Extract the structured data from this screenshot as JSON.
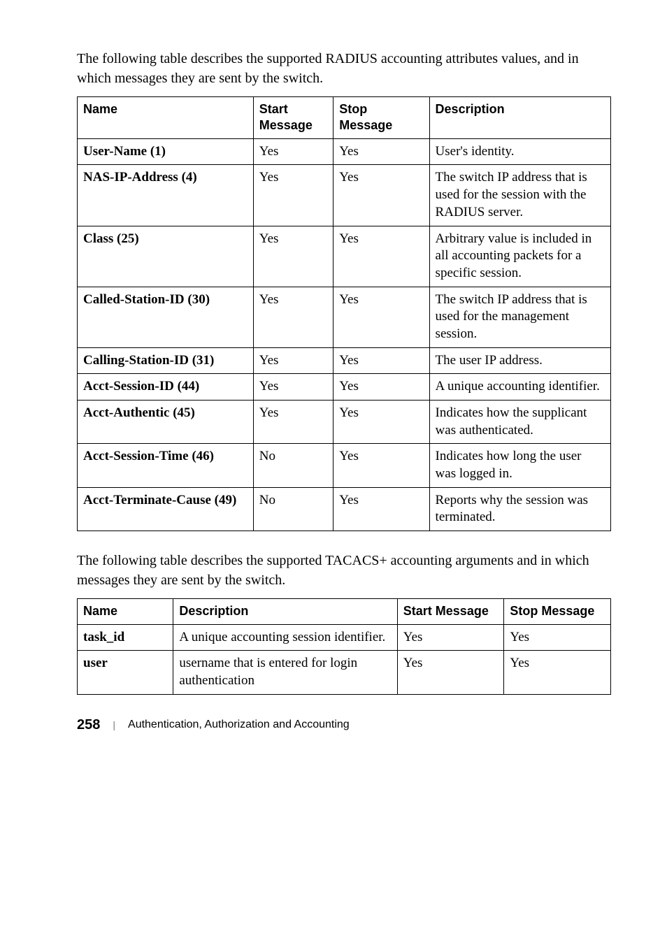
{
  "intro1": "The following table describes the supported RADIUS accounting attributes values, and in which messages they are sent by the switch.",
  "table1": {
    "headers": {
      "c1": "Name",
      "c2": "Start Message",
      "c3": "Stop Message",
      "c4": "Description"
    },
    "rows": [
      {
        "name": "User-Name (1)",
        "start": "Yes",
        "stop": "Yes",
        "desc": "User's identity."
      },
      {
        "name": "NAS-IP-Address (4)",
        "start": "Yes",
        "stop": "Yes",
        "desc": "The switch IP address that is used for the session with the RADIUS server."
      },
      {
        "name": "Class (25)",
        "start": "Yes",
        "stop": "Yes",
        "desc": "Arbitrary value is included in all accounting packets for a specific session."
      },
      {
        "name": "Called-Station-ID (30)",
        "start": "Yes",
        "stop": "Yes",
        "desc": "The switch IP address that is used for the management session."
      },
      {
        "name": "Calling-Station-ID (31)",
        "start": "Yes",
        "stop": "Yes",
        "desc": "The user IP address."
      },
      {
        "name": "Acct-Session-ID (44)",
        "start": "Yes",
        "stop": "Yes",
        "desc": "A unique accounting identifier."
      },
      {
        "name": "Acct-Authentic (45)",
        "start": "Yes",
        "stop": "Yes",
        "desc": "Indicates how the supplicant was authenticated."
      },
      {
        "name": "Acct-Session-Time (46)",
        "start": "No",
        "stop": "Yes",
        "desc": "Indicates how long the user was logged in."
      },
      {
        "name": "Acct-Terminate-Cause (49)",
        "start": "No",
        "stop": "Yes",
        "desc": "Reports why the session was terminated."
      }
    ],
    "widths": {
      "c1": "33%",
      "c2": "15%",
      "c3": "18%",
      "c4": "34%"
    }
  },
  "intro2": "The following table describes the supported TACACS+ accounting arguments and in which messages they are sent by the switch.",
  "table2": {
    "headers": {
      "c1": "Name",
      "c2": "Description",
      "c3": "Start Message",
      "c4": "Stop Message"
    },
    "rows": [
      {
        "name": "task_id",
        "desc": "A unique accounting session identifier.",
        "start": "Yes",
        "stop": "Yes"
      },
      {
        "name": "user",
        "desc": "username that is entered for login authentication",
        "start": "Yes",
        "stop": "Yes"
      }
    ],
    "widths": {
      "c1": "18%",
      "c2": "42%",
      "c3": "20%",
      "c4": "20%"
    }
  },
  "footer": {
    "pagenum": "258",
    "section": "Authentication, Authorization and Accounting"
  }
}
